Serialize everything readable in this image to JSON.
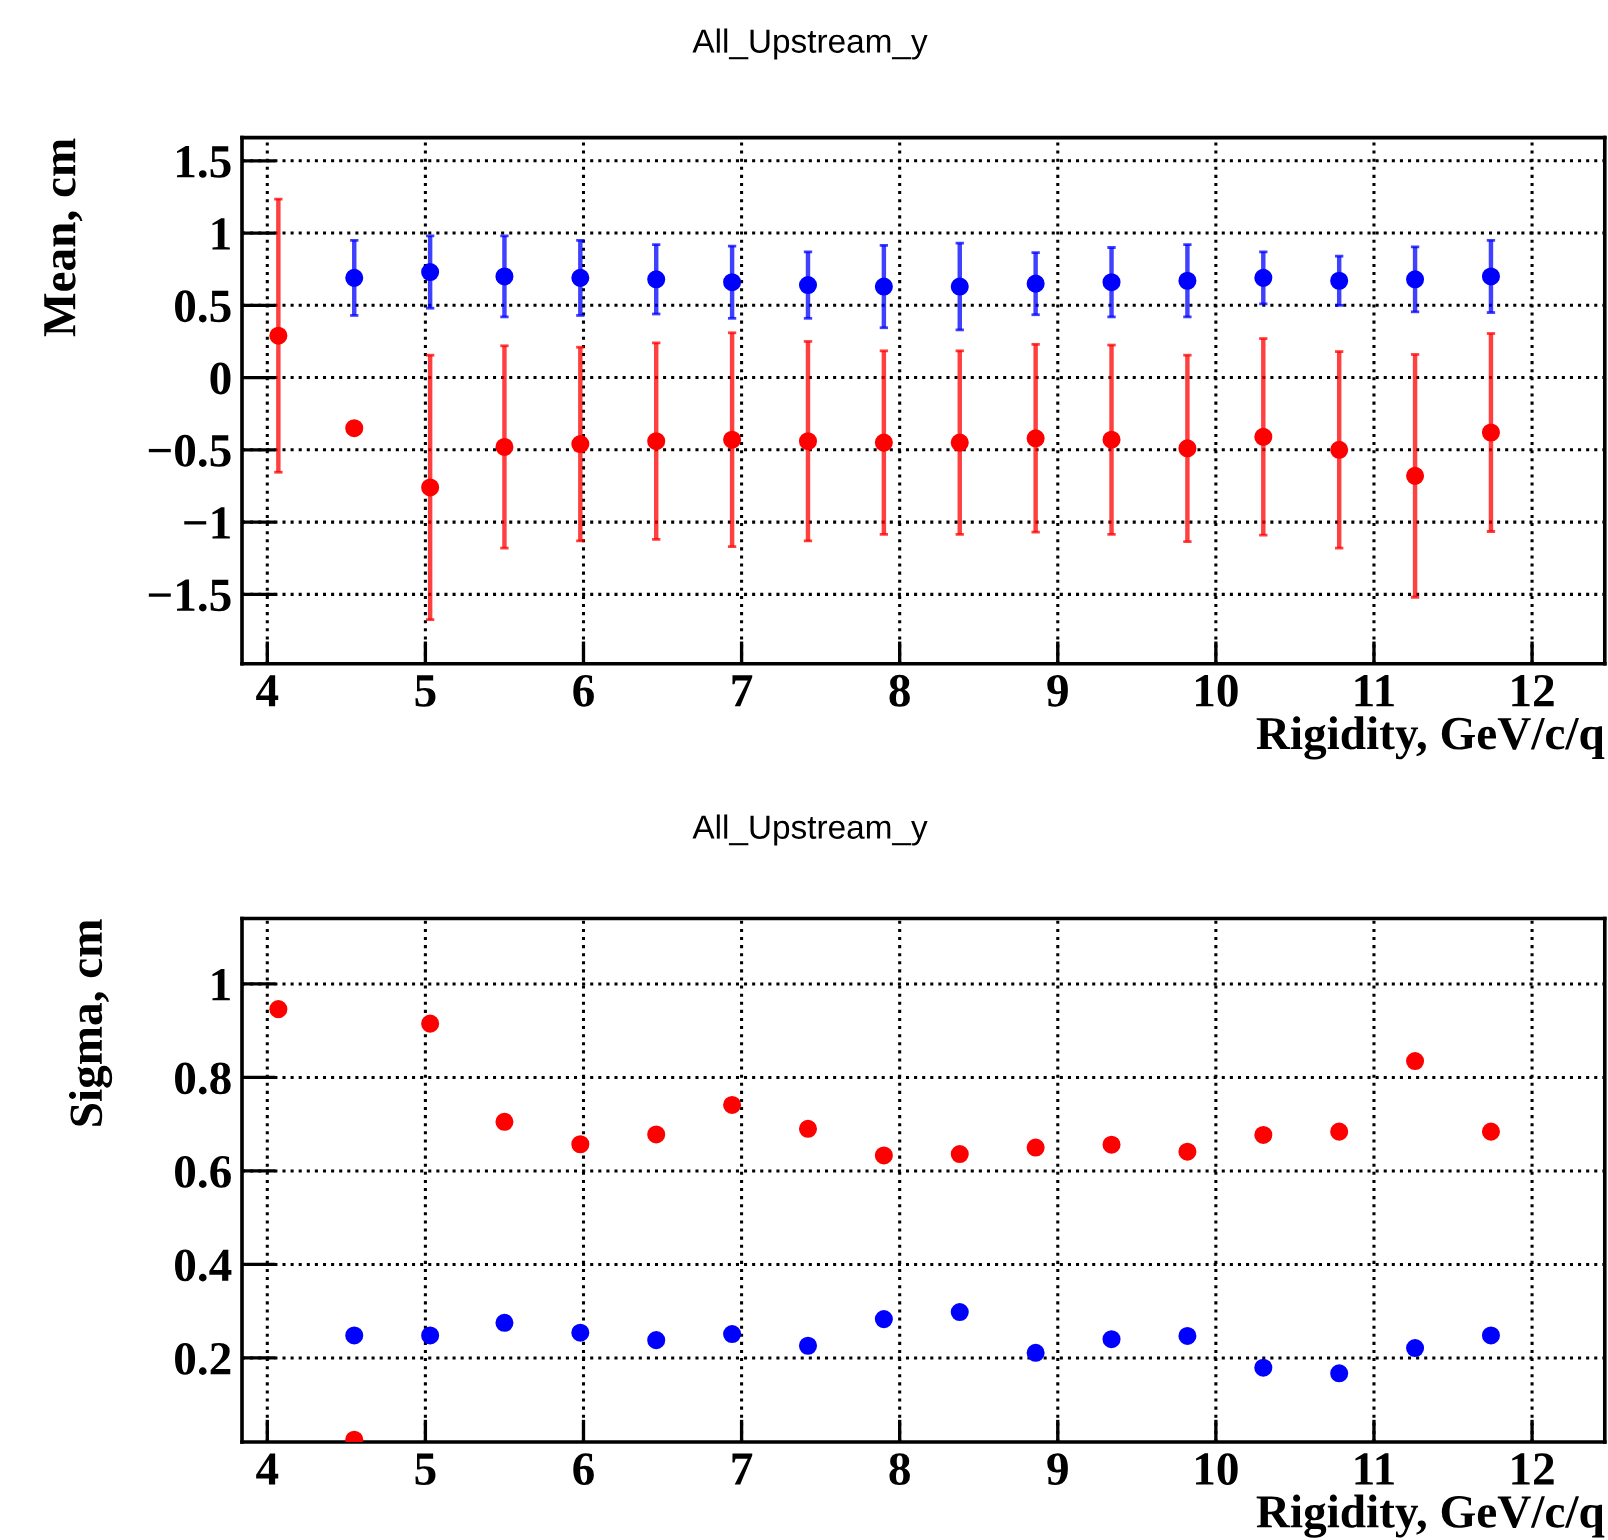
{
  "chart_data": [
    {
      "type": "scatter",
      "title": "All_Upstream_y",
      "xlabel": "Rigidity, GeV/c/q",
      "ylabel": "Mean, cm",
      "xlim": [
        3.84,
        12.46
      ],
      "ylim": [
        -1.98,
        1.66
      ],
      "xticks": [
        4,
        5,
        6,
        7,
        8,
        9,
        10,
        11,
        12
      ],
      "yticks": [
        {
          "value": -1.5,
          "label": "−1.5"
        },
        {
          "value": -1,
          "label": "−1"
        },
        {
          "value": -0.5,
          "label": "−0.5"
        },
        0,
        0.5,
        1,
        1.5
      ],
      "grid": true,
      "marker": "circle",
      "series": [
        {
          "color": "#0000ff",
          "x": [
            4.55,
            5.03,
            5.5,
            5.98,
            6.46,
            6.94,
            7.42,
            7.9,
            8.38,
            8.86,
            9.34,
            9.82,
            10.3,
            10.78,
            11.26,
            11.74
          ],
          "values": [
            0.69,
            0.73,
            0.7,
            0.69,
            0.68,
            0.66,
            0.64,
            0.63,
            0.63,
            0.65,
            0.66,
            0.67,
            0.69,
            0.67,
            0.68,
            0.7
          ],
          "errors": [
            0.26,
            0.25,
            0.28,
            0.26,
            0.24,
            0.25,
            0.23,
            0.285,
            0.3,
            0.215,
            0.24,
            0.25,
            0.18,
            0.17,
            0.225,
            0.25
          ]
        },
        {
          "color": "#ff0000",
          "x": [
            4.07,
            4.55,
            5.03,
            5.5,
            5.98,
            6.46,
            6.94,
            7.42,
            7.9,
            8.38,
            8.86,
            9.34,
            9.82,
            10.3,
            10.78,
            11.26,
            11.74
          ],
          "values": [
            0.29,
            -0.35,
            -0.76,
            -0.48,
            -0.46,
            -0.44,
            -0.43,
            -0.44,
            -0.45,
            -0.45,
            -0.42,
            -0.43,
            -0.49,
            -0.41,
            -0.5,
            -0.68,
            -0.38
          ],
          "errors": [
            0.945,
            null,
            0.915,
            0.7,
            0.67,
            0.68,
            0.74,
            0.69,
            0.635,
            0.635,
            0.65,
            0.655,
            0.645,
            0.68,
            0.68,
            0.84,
            0.685
          ]
        }
      ]
    },
    {
      "type": "scatter",
      "title": "All_Upstream_y",
      "xlabel": "Rigidity, GeV/c/q",
      "ylabel": "Sigma, cm",
      "xlim": [
        3.84,
        12.46
      ],
      "ylim": [
        0.02,
        1.14
      ],
      "xticks": [
        4,
        5,
        6,
        7,
        8,
        9,
        10,
        11,
        12
      ],
      "yticks": [
        0.2,
        0.4,
        0.6,
        0.8,
        1
      ],
      "grid": true,
      "marker": "circle",
      "series": [
        {
          "color": "#0000ff",
          "x": [
            4.55,
            5.03,
            5.5,
            5.98,
            6.46,
            6.94,
            7.42,
            7.9,
            8.38,
            8.86,
            9.34,
            9.82,
            10.3,
            10.78,
            11.26,
            11.74
          ],
          "values": [
            0.248,
            0.248,
            0.275,
            0.254,
            0.238,
            0.251,
            0.226,
            0.283,
            0.298,
            0.211,
            0.24,
            0.247,
            0.179,
            0.167,
            0.221,
            0.248
          ]
        },
        {
          "color": "#ff0000",
          "x": [
            4.07,
            4.55,
            5.03,
            5.5,
            5.98,
            6.46,
            6.94,
            7.42,
            7.9,
            8.38,
            8.86,
            9.34,
            9.82,
            10.3,
            10.78,
            11.26,
            11.74
          ],
          "values": [
            0.946,
            0.025,
            0.915,
            0.705,
            0.657,
            0.678,
            0.741,
            0.69,
            0.633,
            0.636,
            0.65,
            0.656,
            0.641,
            0.677,
            0.684,
            0.835,
            0.684
          ]
        }
      ]
    }
  ]
}
